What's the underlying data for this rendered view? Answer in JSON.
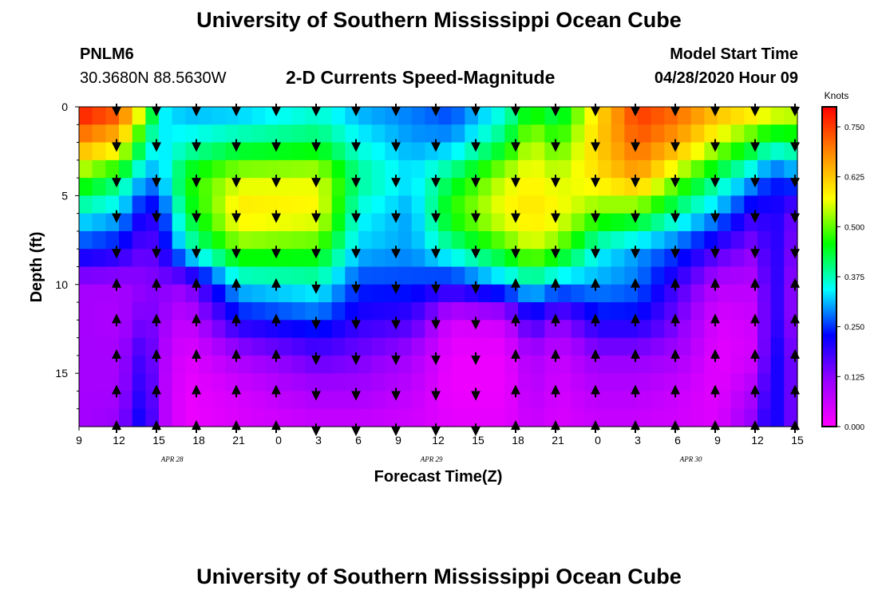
{
  "page": {
    "header_title": "University of Southern Mississippi Ocean Cube",
    "footer_title": "University of Southern Mississippi Ocean Cube",
    "station_id": "PNLM6",
    "station_coords": "30.3680N 88.5630W",
    "chart_title": "2-D Currents Speed-Magnitude",
    "model_start_label": "Model Start Time",
    "model_start_time": "04/28/2020 Hour 09"
  },
  "chart_data": {
    "type": "heatmap",
    "title": "2-D Currents Speed-Magnitude",
    "xlabel": "Forecast Time(Z)",
    "ylabel": "Depth (ft)",
    "x_tick_labels": [
      "9",
      "12",
      "15",
      "18",
      "21",
      "0",
      "3",
      "6",
      "9",
      "12",
      "15",
      "18",
      "21",
      "0",
      "3",
      "6",
      "9",
      "12",
      "15"
    ],
    "forecast_hours": [
      0,
      3,
      6,
      9,
      12,
      15,
      18,
      21,
      24,
      27,
      30,
      33,
      36,
      39,
      42,
      45,
      48,
      51,
      54
    ],
    "date_labels": [
      {
        "text": "APR 28",
        "hour": 7
      },
      {
        "text": "APR 29",
        "hour": 26.5
      },
      {
        "text": "APR 30",
        "hour": 46
      }
    ],
    "y_ticks": [
      0,
      5,
      10,
      15
    ],
    "ylim": [
      0,
      18
    ],
    "xlim": [
      0,
      54
    ],
    "colorbar": {
      "unit": "Knots",
      "ticks": [
        0.0,
        0.125,
        0.25,
        0.375,
        0.5,
        0.625,
        0.75
      ],
      "tick_labels": [
        "0.000",
        "0.125",
        "0.250",
        "0.375",
        "0.500",
        "0.625",
        "0.750"
      ],
      "range": [
        0,
        0.8
      ]
    },
    "colors": [
      "#ff00ff",
      "#9900ff",
      "#0000ff",
      "#00ffff",
      "#00ff00",
      "#ffff00",
      "#ff8800",
      "#ff0000"
    ],
    "speed_knots": {
      "depths_ft": [
        0,
        2,
        4,
        6,
        8,
        10,
        12,
        14,
        16,
        18
      ],
      "columns": [
        {
          "hour": 0,
          "v": [
            0.8,
            0.68,
            0.5,
            0.35,
            0.25,
            0.1,
            0.1,
            0.1,
            0.1,
            0.1
          ]
        },
        {
          "hour": 3,
          "v": [
            0.75,
            0.62,
            0.42,
            0.32,
            0.22,
            0.1,
            0.09,
            0.1,
            0.1,
            0.12
          ]
        },
        {
          "hour": 5,
          "v": [
            0.55,
            0.4,
            0.3,
            0.2,
            0.15,
            0.12,
            0.15,
            0.2,
            0.22,
            0.25
          ]
        },
        {
          "hour": 6,
          "v": [
            0.35,
            0.33,
            0.3,
            0.22,
            0.18,
            0.13,
            0.12,
            0.1,
            0.1,
            0.1
          ]
        },
        {
          "hour": 8,
          "v": [
            0.3,
            0.36,
            0.46,
            0.42,
            0.35,
            0.12,
            0.06,
            0.03,
            0.02,
            0.02
          ]
        },
        {
          "hour": 12,
          "v": [
            0.3,
            0.4,
            0.55,
            0.6,
            0.5,
            0.33,
            0.22,
            0.1,
            0.05,
            0.04
          ]
        },
        {
          "hour": 18,
          "v": [
            0.35,
            0.42,
            0.56,
            0.58,
            0.48,
            0.36,
            0.26,
            0.16,
            0.1,
            0.06
          ]
        },
        {
          "hour": 21,
          "v": [
            0.3,
            0.35,
            0.4,
            0.35,
            0.32,
            0.25,
            0.2,
            0.14,
            0.1,
            0.06
          ]
        },
        {
          "hour": 25,
          "v": [
            0.28,
            0.3,
            0.33,
            0.3,
            0.3,
            0.25,
            0.18,
            0.1,
            0.07,
            0.05
          ]
        },
        {
          "hour": 28,
          "v": [
            0.25,
            0.3,
            0.42,
            0.48,
            0.38,
            0.22,
            0.05,
            0.02,
            0.02,
            0.03
          ]
        },
        {
          "hour": 32,
          "v": [
            0.35,
            0.42,
            0.55,
            0.58,
            0.48,
            0.3,
            0.06,
            0.02,
            0.02,
            0.03
          ]
        },
        {
          "hour": 34,
          "v": [
            0.45,
            0.55,
            0.58,
            0.6,
            0.55,
            0.35,
            0.2,
            0.1,
            0.08,
            0.06
          ]
        },
        {
          "hour": 36,
          "v": [
            0.4,
            0.48,
            0.55,
            0.58,
            0.5,
            0.3,
            0.12,
            0.06,
            0.05,
            0.04
          ]
        },
        {
          "hour": 39,
          "v": [
            0.6,
            0.62,
            0.6,
            0.5,
            0.35,
            0.3,
            0.22,
            0.12,
            0.08,
            0.06
          ]
        },
        {
          "hour": 42,
          "v": [
            0.76,
            0.72,
            0.66,
            0.48,
            0.3,
            0.28,
            0.22,
            0.12,
            0.08,
            0.06
          ]
        },
        {
          "hour": 45,
          "v": [
            0.72,
            0.66,
            0.52,
            0.38,
            0.26,
            0.18,
            0.14,
            0.1,
            0.06,
            0.05
          ]
        },
        {
          "hour": 48,
          "v": [
            0.65,
            0.55,
            0.4,
            0.3,
            0.18,
            0.08,
            0.04,
            0.03,
            0.03,
            0.04
          ]
        },
        {
          "hour": 51,
          "v": [
            0.62,
            0.45,
            0.3,
            0.18,
            0.12,
            0.08,
            0.06,
            0.05,
            0.1,
            0.14
          ]
        },
        {
          "hour": 52,
          "v": [
            0.6,
            0.4,
            0.24,
            0.22,
            0.22,
            0.22,
            0.22,
            0.24,
            0.24,
            0.24
          ]
        },
        {
          "hour": 54,
          "v": [
            0.58,
            0.42,
            0.28,
            0.14,
            0.12,
            0.1,
            0.1,
            0.12,
            0.12,
            0.12
          ]
        }
      ]
    },
    "arrow_depths_ft": [
      0,
      2,
      4,
      6,
      8,
      10,
      12,
      14,
      16,
      18
    ],
    "arrow_hours": [
      3,
      6,
      9,
      12,
      15,
      18,
      21,
      24,
      27,
      30,
      33,
      36,
      39,
      42,
      45,
      48,
      51,
      54
    ],
    "direction_zones": [
      {
        "hours": [
          3,
          54
        ],
        "depths": [
          0,
          9
        ],
        "dir": "down"
      },
      {
        "hours": [
          3,
          15
        ],
        "depths": [
          9.5,
          18
        ],
        "dir": "up"
      },
      {
        "hours": [
          18,
          30
        ],
        "depths": [
          9.5,
          18
        ],
        "dir": "down"
      },
      {
        "hours": [
          33,
          54
        ],
        "depths": [
          9.5,
          18
        ],
        "dir": "up"
      }
    ]
  }
}
